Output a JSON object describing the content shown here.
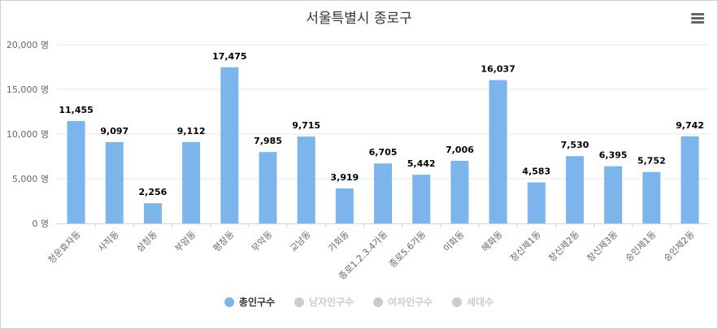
{
  "chart_data": {
    "type": "bar",
    "title": "서울특별시 종로구",
    "unit": "명",
    "ylim": [
      0,
      20000
    ],
    "y_ticks": [
      {
        "value": 0,
        "label": "0 명"
      },
      {
        "value": 5000,
        "label": "5,000 명"
      },
      {
        "value": 10000,
        "label": "10,000 명"
      },
      {
        "value": 15000,
        "label": "15,000 명"
      },
      {
        "value": 20000,
        "label": "20,000 명"
      }
    ],
    "categories": [
      "청운효자동",
      "사직동",
      "삼청동",
      "부암동",
      "평창동",
      "무악동",
      "교남동",
      "가회동",
      "종로1.2.3.4가동",
      "종로5.6가동",
      "이화동",
      "혜화동",
      "창신제1동",
      "창신제2동",
      "창신제3동",
      "숭인제1동",
      "숭인제2동"
    ],
    "series": [
      {
        "name": "총인구수",
        "visible": true,
        "color": "#7cb5ec",
        "values": [
          11455,
          9097,
          2256,
          9112,
          17475,
          7985,
          9715,
          3919,
          6705,
          5442,
          7006,
          16037,
          4583,
          7530,
          6395,
          5752,
          9742
        ],
        "value_labels": [
          "11,455",
          "9,097",
          "2,256",
          "9,112",
          "17,475",
          "7,985",
          "9,715",
          "3,919",
          "6,705",
          "5,442",
          "7,006",
          "16,037",
          "4,583",
          "7,530",
          "6,395",
          "5,752",
          "9,742"
        ]
      },
      {
        "name": "남자인구수",
        "visible": false,
        "color": "#cccccc"
      },
      {
        "name": "여자인구수",
        "visible": false,
        "color": "#cccccc"
      },
      {
        "name": "세대수",
        "visible": false,
        "color": "#cccccc"
      }
    ],
    "legend_position": "bottom-center",
    "grid": true
  },
  "colors": {
    "bar": "#7cb5ec",
    "grid": "#e6e6e6",
    "axis_text": "#666666",
    "legend_active": "#7cb5ec",
    "legend_inactive": "#cccccc"
  },
  "menu_icon": "hamburger-icon"
}
